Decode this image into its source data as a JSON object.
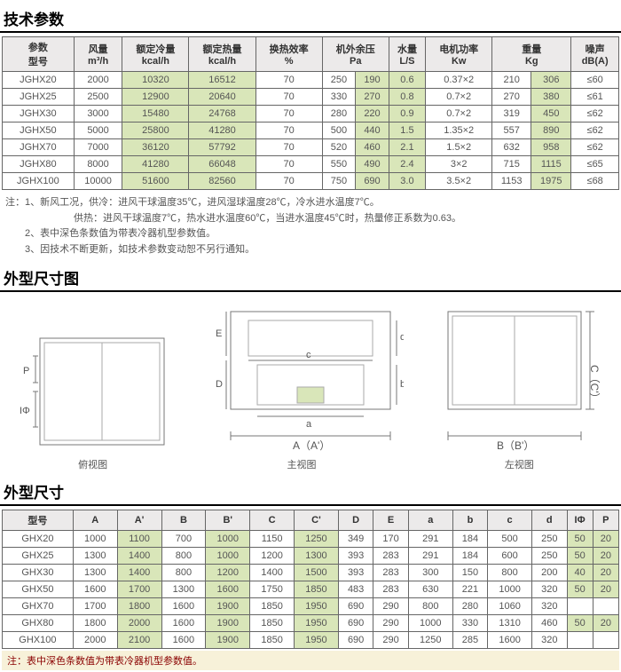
{
  "spec_title": "技术参数",
  "spec_headers": {
    "h1": "参数\n型号",
    "h2": "风量\nm³/h",
    "h3": "额定冷量\nkcal/h",
    "h4": "额定热量\nkcal/h",
    "h5": "换热效率\n%",
    "h6": "机外余压\nPa",
    "h7": "水量\nL/S",
    "h8": "电机功率\nKw",
    "h9": "重量\nKg",
    "h10": "噪声\ndB(A)"
  },
  "spec_rows": [
    {
      "model": "JGHX20",
      "air": "2000",
      "cool": "10320",
      "heat": "16512",
      "eff": "70",
      "pa1": "250",
      "pa2": "190",
      "ls": "0.6",
      "kw": "0.37×2",
      "kg1": "210",
      "kg2": "306",
      "db": "≤60"
    },
    {
      "model": "JGHX25",
      "air": "2500",
      "cool": "12900",
      "heat": "20640",
      "eff": "70",
      "pa1": "330",
      "pa2": "270",
      "ls": "0.8",
      "kw": "0.7×2",
      "kg1": "270",
      "kg2": "380",
      "db": "≤61"
    },
    {
      "model": "JGHX30",
      "air": "3000",
      "cool": "15480",
      "heat": "24768",
      "eff": "70",
      "pa1": "280",
      "pa2": "220",
      "ls": "0.9",
      "kw": "0.7×2",
      "kg1": "319",
      "kg2": "450",
      "db": "≤62"
    },
    {
      "model": "JGHX50",
      "air": "5000",
      "cool": "25800",
      "heat": "41280",
      "eff": "70",
      "pa1": "500",
      "pa2": "440",
      "ls": "1.5",
      "kw": "1.35×2",
      "kg1": "557",
      "kg2": "890",
      "db": "≤62"
    },
    {
      "model": "JGHX70",
      "air": "7000",
      "cool": "36120",
      "heat": "57792",
      "eff": "70",
      "pa1": "520",
      "pa2": "460",
      "ls": "2.1",
      "kw": "1.5×2",
      "kg1": "632",
      "kg2": "958",
      "db": "≤62"
    },
    {
      "model": "JGHX80",
      "air": "8000",
      "cool": "41280",
      "heat": "66048",
      "eff": "70",
      "pa1": "550",
      "pa2": "490",
      "ls": "2.4",
      "kw": "3×2",
      "kg1": "715",
      "kg2": "1115",
      "db": "≤65"
    },
    {
      "model": "JGHX100",
      "air": "10000",
      "cool": "51600",
      "heat": "82560",
      "eff": "70",
      "pa1": "750",
      "pa2": "690",
      "ls": "3.0",
      "kw": "3.5×2",
      "kg1": "1153",
      "kg2": "1975",
      "db": "≤68"
    }
  ],
  "spec_notes": [
    "注：1、新风工况，供冷：进风干球温度35℃，进风湿球温度28℃，冷水进水温度7℃。",
    "　　　　　　　供热：进风干球温度7℃，热水进水温度60℃，当进水温度45℃时，热量修正系数为0.63。",
    "　　2、表中深色条数值为带表冷器机型参数值。",
    "　　3、因技术不断更新，如技术参数变动恕不另行通知。"
  ],
  "diag_title": "外型尺寸图",
  "diag_labels": {
    "top": "俯视图",
    "front": "主视图",
    "left": "左视图"
  },
  "diag_letters": {
    "A": "A（A'）",
    "B": "B（B'）",
    "C": "C（C'）",
    "D": "D",
    "E": "E",
    "a": "a",
    "b": "b",
    "c": "c",
    "d": "d",
    "Iphi": "IΦ",
    "P": "P"
  },
  "dim_title": "外型尺寸",
  "dim_headers": [
    "型号",
    "A",
    "A'",
    "B",
    "B'",
    "C",
    "C'",
    "D",
    "E",
    "a",
    "b",
    "c",
    "d",
    "IΦ",
    "P"
  ],
  "dim_rows": [
    {
      "m": "GHX20",
      "A": "1000",
      "Ap": "1100",
      "B": "700",
      "Bp": "1000",
      "C": "1150",
      "Cp": "1250",
      "D": "349",
      "E": "170",
      "a": "291",
      "b": "184",
      "c": "500",
      "d": "250",
      "I": "50",
      "P": "20"
    },
    {
      "m": "GHX25",
      "A": "1300",
      "Ap": "1400",
      "B": "800",
      "Bp": "1000",
      "C": "1200",
      "Cp": "1300",
      "D": "393",
      "E": "283",
      "a": "291",
      "b": "184",
      "c": "600",
      "d": "250",
      "I": "50",
      "P": "20"
    },
    {
      "m": "GHX30",
      "A": "1300",
      "Ap": "1400",
      "B": "800",
      "Bp": "1200",
      "C": "1400",
      "Cp": "1500",
      "D": "393",
      "E": "283",
      "a": "300",
      "b": "150",
      "c": "800",
      "d": "200",
      "I": "40",
      "P": "20"
    },
    {
      "m": "GHX50",
      "A": "1600",
      "Ap": "1700",
      "B": "1300",
      "Bp": "1600",
      "C": "1750",
      "Cp": "1850",
      "D": "483",
      "E": "283",
      "a": "630",
      "b": "221",
      "c": "1000",
      "d": "320",
      "I": "50",
      "P": "20"
    },
    {
      "m": "GHX70",
      "A": "1700",
      "Ap": "1800",
      "B": "1600",
      "Bp": "1900",
      "C": "1850",
      "Cp": "1950",
      "D": "690",
      "E": "290",
      "a": "800",
      "b": "280",
      "c": "1060",
      "d": "320",
      "I": "",
      "P": ""
    },
    {
      "m": "GHX80",
      "A": "1800",
      "Ap": "2000",
      "B": "1600",
      "Bp": "1900",
      "C": "1850",
      "Cp": "1950",
      "D": "690",
      "E": "290",
      "a": "1000",
      "b": "330",
      "c": "1310",
      "d": "460",
      "I": "50",
      "P": "20"
    },
    {
      "m": "GHX100",
      "A": "2000",
      "Ap": "2100",
      "B": "1600",
      "Bp": "1900",
      "C": "1850",
      "Cp": "1950",
      "D": "690",
      "E": "290",
      "a": "1250",
      "b": "285",
      "c": "1600",
      "d": "320",
      "I": "",
      "P": ""
    }
  ],
  "dim_footnote": "注：表中深色条数值为带表冷器机型参数值。",
  "colors": {
    "highlight": "#d9e6b9",
    "header_bg": "#eceaea",
    "line": "#666"
  }
}
